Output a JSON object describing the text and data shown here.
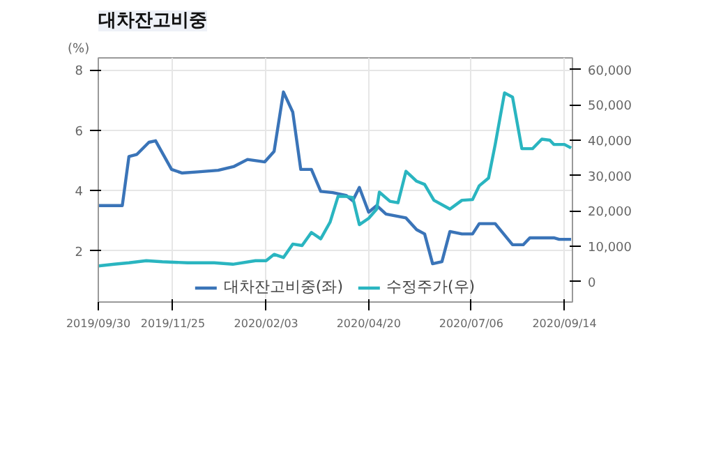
{
  "chart_data": {
    "type": "line",
    "title": "대차잔고비중",
    "ylabel": "(%)",
    "xlim": [
      "2019-09-30",
      "2020-09-20"
    ],
    "xticks": [
      {
        "value": "2019-09-30",
        "label": "2019/09/30"
      },
      {
        "value": "2019-11-25",
        "label": "2019/11/25"
      },
      {
        "value": "2020-02-03",
        "label": "2020/02/03"
      },
      {
        "value": "2020-04-20",
        "label": "2020/04/20"
      },
      {
        "value": "2020-07-06",
        "label": "2020/07/06"
      },
      {
        "value": "2020-09-14",
        "label": "2020/09/14"
      }
    ],
    "ylim": [
      0.3,
      8.4
    ],
    "yticks": [
      2,
      4,
      6,
      8
    ],
    "y2lim": [
      -5800,
      63300
    ],
    "y2ticks": [
      {
        "value": 0,
        "label": "0"
      },
      {
        "value": 10000,
        "label": "10,000"
      },
      {
        "value": 20000,
        "label": "20,000"
      },
      {
        "value": 30000,
        "label": "30,000"
      },
      {
        "value": 40000,
        "label": "40,000"
      },
      {
        "value": 50000,
        "label": "50,000"
      },
      {
        "value": 60000,
        "label": "60,000"
      }
    ],
    "grid": true,
    "legend": "bottom",
    "marker": "none",
    "line_style": "solid",
    "series": [
      {
        "name": "대차잔고비중(좌)",
        "color": "#3a74b8",
        "x": [
          "2019-09-30",
          "2019-10-18",
          "2019-10-23",
          "2019-10-29",
          "2019-11-07",
          "2019-11-12",
          "2019-11-24",
          "2019-12-02",
          "2019-12-14",
          "2019-12-29",
          "2020-01-10",
          "2020-01-20",
          "2020-02-02",
          "2020-02-09",
          "2020-02-16",
          "2020-02-23",
          "2020-02-29",
          "2020-03-08",
          "2020-03-15",
          "2020-03-24",
          "2020-04-03",
          "2020-04-08",
          "2020-04-13",
          "2020-04-20",
          "2020-04-26",
          "2020-05-03",
          "2020-05-18",
          "2020-05-26",
          "2020-06-01",
          "2020-06-07",
          "2020-06-14",
          "2020-06-20",
          "2020-06-29",
          "2020-07-07",
          "2020-07-12",
          "2020-07-24",
          "2020-08-06",
          "2020-08-14",
          "2020-08-19",
          "2020-09-06",
          "2020-09-10",
          "2020-09-19"
        ],
        "values": [
          3.5,
          3.5,
          5.13,
          5.2,
          5.6,
          5.65,
          4.7,
          4.58,
          4.62,
          4.67,
          4.8,
          5.03,
          4.95,
          5.3,
          7.27,
          6.6,
          4.7,
          4.7,
          3.97,
          3.93,
          3.84,
          3.66,
          4.1,
          3.28,
          3.5,
          3.22,
          3.09,
          2.7,
          2.56,
          1.57,
          1.64,
          2.64,
          2.56,
          2.56,
          2.9,
          2.9,
          2.2,
          2.2,
          2.43,
          2.43,
          2.38,
          2.38
        ]
      },
      {
        "name": "수정주가(우)",
        "color": "#2ab5c0",
        "axis": "y2",
        "x": [
          "2019-09-30",
          "2019-10-12",
          "2019-10-23",
          "2019-11-05",
          "2019-11-17",
          "2019-12-06",
          "2019-12-26",
          "2020-01-09",
          "2020-01-26",
          "2020-02-03",
          "2020-02-09",
          "2020-02-16",
          "2020-02-23",
          "2020-03-01",
          "2020-03-08",
          "2020-03-15",
          "2020-03-22",
          "2020-03-28",
          "2020-04-03",
          "2020-04-08",
          "2020-04-13",
          "2020-04-20",
          "2020-04-26",
          "2020-04-28",
          "2020-05-06",
          "2020-05-12",
          "2020-05-18",
          "2020-05-26",
          "2020-06-01",
          "2020-06-08",
          "2020-06-20",
          "2020-06-29",
          "2020-07-07",
          "2020-07-12",
          "2020-07-19",
          "2020-07-24",
          "2020-07-31",
          "2020-08-06",
          "2020-08-13",
          "2020-08-21",
          "2020-08-28",
          "2020-09-03",
          "2020-09-06",
          "2020-09-14",
          "2020-09-19"
        ],
        "values": [
          4400,
          4900,
          5300,
          5900,
          5600,
          5300,
          5300,
          4900,
          5900,
          5900,
          7700,
          6800,
          10600,
          10200,
          13900,
          12100,
          16800,
          24100,
          24100,
          23800,
          16100,
          17900,
          20500,
          25300,
          22700,
          22300,
          31200,
          28400,
          27500,
          23000,
          20500,
          23000,
          23200,
          27100,
          29300,
          38800,
          53400,
          52200,
          37600,
          37600,
          40300,
          40000,
          38800,
          38800,
          37800
        ]
      }
    ]
  }
}
